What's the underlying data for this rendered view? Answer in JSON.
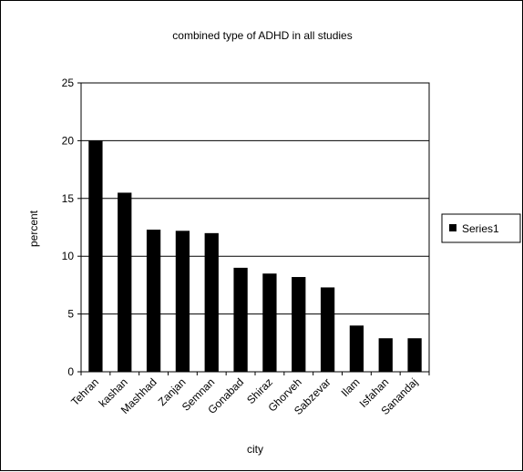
{
  "chart_data": {
    "type": "bar",
    "title": "combined type of ADHD in all studies",
    "xlabel": "city",
    "ylabel": "percent",
    "ylim": [
      0,
      25
    ],
    "yticks": [
      0,
      5,
      10,
      15,
      20,
      25
    ],
    "grid": true,
    "legend_position": "right",
    "categories": [
      "Tehran",
      "kashan",
      "Mashhad",
      "Zanjan",
      "Semnan",
      "Gonabad",
      "Shiraz",
      "Ghorveh",
      "Sabzevar",
      "Ilam",
      "Isfahan",
      "Sanandaj"
    ],
    "series": [
      {
        "name": "Series1",
        "color": "#000000",
        "values": [
          20,
          15.5,
          12.3,
          12.2,
          12,
          9,
          8.5,
          8.2,
          7.3,
          4,
          2.9,
          2.9
        ]
      }
    ]
  }
}
